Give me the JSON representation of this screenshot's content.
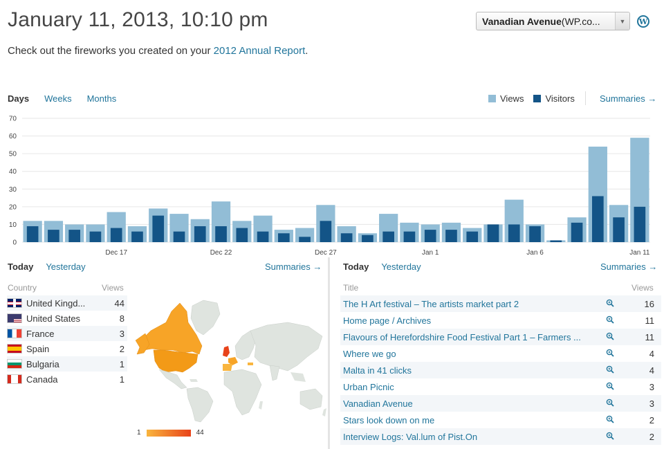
{
  "header": {
    "title": "January 11, 2013, 10:10 pm",
    "blog_select_name": "Vanadian Avenue",
    "blog_select_suffix": " (WP.co...",
    "wp_logo": "W",
    "annual_prefix": "Check out the fireworks you created on your ",
    "annual_link": "2012 Annual Report",
    "annual_suffix": "."
  },
  "period_tabs": [
    {
      "label": "Days",
      "active": true
    },
    {
      "label": "Weeks",
      "active": false
    },
    {
      "label": "Months",
      "active": false
    }
  ],
  "legend": {
    "views": "Views",
    "visitors": "Visitors",
    "summaries": "Summaries →"
  },
  "colors": {
    "views": "#92bdd6",
    "visitors": "#135487",
    "grid": "#e6e6e6",
    "link": "#21759b",
    "map_land": "#dfe4df",
    "map_low": "#f9b53e",
    "map_high": "#e8431a"
  },
  "chart_data": {
    "type": "bar",
    "ylim": [
      0,
      70
    ],
    "yticks": [
      0,
      10,
      20,
      30,
      40,
      50,
      60,
      70
    ],
    "xtick_labels": [
      {
        "index": 4,
        "label": "Dec 17"
      },
      {
        "index": 9,
        "label": "Dec 22"
      },
      {
        "index": 14,
        "label": "Dec 27"
      },
      {
        "index": 19,
        "label": "Jan 1"
      },
      {
        "index": 24,
        "label": "Jan 6"
      },
      {
        "index": 29,
        "label": "Jan 11"
      }
    ],
    "series": [
      {
        "name": "Views",
        "values": [
          12,
          12,
          10,
          10,
          17,
          9,
          19,
          16,
          13,
          23,
          12,
          15,
          7,
          8,
          21,
          9,
          5,
          16,
          11,
          10,
          11,
          8,
          10,
          24,
          10,
          1,
          14,
          54,
          21,
          59
        ]
      },
      {
        "name": "Visitors",
        "values": [
          9,
          7,
          7,
          6,
          8,
          6,
          15,
          6,
          9,
          9,
          8,
          6,
          5,
          3,
          12,
          5,
          4,
          6,
          6,
          7,
          7,
          6,
          10,
          10,
          9,
          1,
          11,
          26,
          14,
          20
        ]
      }
    ]
  },
  "left_panel": {
    "tabs": [
      {
        "label": "Today",
        "active": true
      },
      {
        "label": "Yesterday",
        "active": false
      }
    ],
    "summaries": "Summaries →",
    "col_country": "Country",
    "col_views": "Views",
    "countries": [
      {
        "name": "United Kingd...",
        "views": "44",
        "flag": "uk"
      },
      {
        "name": "United States",
        "views": "8",
        "flag": "us"
      },
      {
        "name": "France",
        "views": "3",
        "flag": "fr"
      },
      {
        "name": "Spain",
        "views": "2",
        "flag": "es"
      },
      {
        "name": "Bulgaria",
        "views": "1",
        "flag": "bg"
      },
      {
        "name": "Canada",
        "views": "1",
        "flag": "ca"
      }
    ],
    "map_scale_min": "1",
    "map_scale_max": "44"
  },
  "right_panel": {
    "tabs": [
      {
        "label": "Today",
        "active": true
      },
      {
        "label": "Yesterday",
        "active": false
      }
    ],
    "summaries": "Summaries →",
    "col_title": "Title",
    "col_views": "Views",
    "zoom_icon": "magnify-icon",
    "posts": [
      {
        "title": "The H Art festival – The artists market part 2",
        "views": "16"
      },
      {
        "title": "Home page / Archives",
        "views": "11"
      },
      {
        "title": "Flavours of Herefordshire Food Festival Part 1 – Farmers ...",
        "views": "11"
      },
      {
        "title": "Where we go",
        "views": "4"
      },
      {
        "title": "Malta in 41 clicks",
        "views": "4"
      },
      {
        "title": "Urban Picnic",
        "views": "3"
      },
      {
        "title": "Vanadian Avenue",
        "views": "3"
      },
      {
        "title": "Stars look down on me",
        "views": "2"
      },
      {
        "title": "Interview Logs: Val.lum of Pist.On",
        "views": "2"
      }
    ]
  }
}
